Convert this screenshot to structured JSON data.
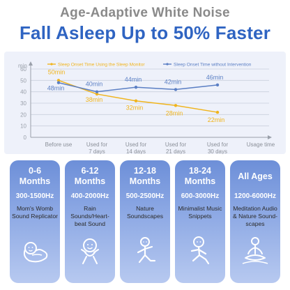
{
  "header": {
    "subtitle": "Age-Adaptive White Noise",
    "headline": "Fall Asleep Up to 50% Faster"
  },
  "chart_data": {
    "type": "line",
    "title": "",
    "xlabel": "Usage time",
    "ylabel": "min",
    "categories": [
      "Before use",
      "Used for 7 days",
      "Used for 14 days",
      "Used for 21 days",
      "Used for 30 days"
    ],
    "category_lines": [
      [
        "Before use"
      ],
      [
        "Used for",
        "7 days"
      ],
      [
        "Used for",
        "14 days"
      ],
      [
        "Used for",
        "21 days"
      ],
      [
        "Used for",
        "30 days"
      ]
    ],
    "ylim": [
      0,
      60
    ],
    "yticks": [
      0,
      10,
      20,
      30,
      40,
      50,
      60
    ],
    "grid": true,
    "legend_position": "top",
    "series": [
      {
        "name": "Sleep Onset Time Using the Sleep Monitor",
        "color": "#f0b41c",
        "values": [
          50,
          38,
          32,
          28,
          22
        ],
        "labels": [
          "50min",
          "38min",
          "32min",
          "28min",
          "22min"
        ]
      },
      {
        "name": "Sleep Onset Time without Intervention",
        "color": "#5b7fc4",
        "values": [
          48,
          40,
          44,
          42,
          46
        ],
        "labels": [
          "48min",
          "40min",
          "44min",
          "42min",
          "46min"
        ]
      }
    ]
  },
  "cards": [
    {
      "age": [
        "0-6",
        "Months"
      ],
      "hz": "300-1500Hz",
      "desc": [
        "Mom's Womb",
        "Sound Replicator"
      ],
      "icon": "swaddled-baby-icon"
    },
    {
      "age": [
        "6-12",
        "Months"
      ],
      "hz": "400-2000Hz",
      "desc": [
        "Rain",
        "Sounds/Heart-",
        "beat Sound"
      ],
      "icon": "happy-baby-icon"
    },
    {
      "age": [
        "12-18",
        "Months"
      ],
      "hz": "500-2500Hz",
      "desc": [
        "Nature",
        "Soundscapes"
      ],
      "icon": "crawling-toddler-icon"
    },
    {
      "age": [
        "18-24",
        "Months"
      ],
      "hz": "600-3000Hz",
      "desc": [
        "Minimalist Music",
        "Snippets"
      ],
      "icon": "running-child-icon"
    },
    {
      "age": [
        "All Ages"
      ],
      "hz": "1200-6000Hz",
      "desc": [
        "Meditation Audio",
        "& Nature Sound-",
        "scapes"
      ],
      "icon": "meditating-person-icon"
    }
  ]
}
